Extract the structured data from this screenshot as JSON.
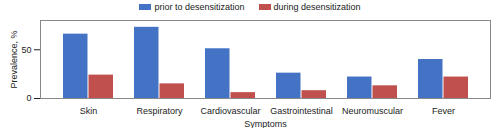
{
  "chart_data": {
    "type": "bar",
    "categories": [
      "Skin",
      "Respiratory",
      "Cardiovascular",
      "Gastrointestinal",
      "Neuromuscular",
      "Fever"
    ],
    "series": [
      {
        "name": "prior to desensitization",
        "color": "#4472c4",
        "values": [
          66,
          73,
          51,
          26,
          22,
          40
        ]
      },
      {
        "name": "during desensitization",
        "color": "#c0504d",
        "values": [
          24,
          15,
          6,
          8,
          13,
          22
        ]
      }
    ],
    "x_label": "Symptoms",
    "y_label": "Prevalence, %",
    "ylim": [
      0,
      80
    ],
    "yticks": [
      0,
      50
    ],
    "legend": "top",
    "grid": false
  }
}
